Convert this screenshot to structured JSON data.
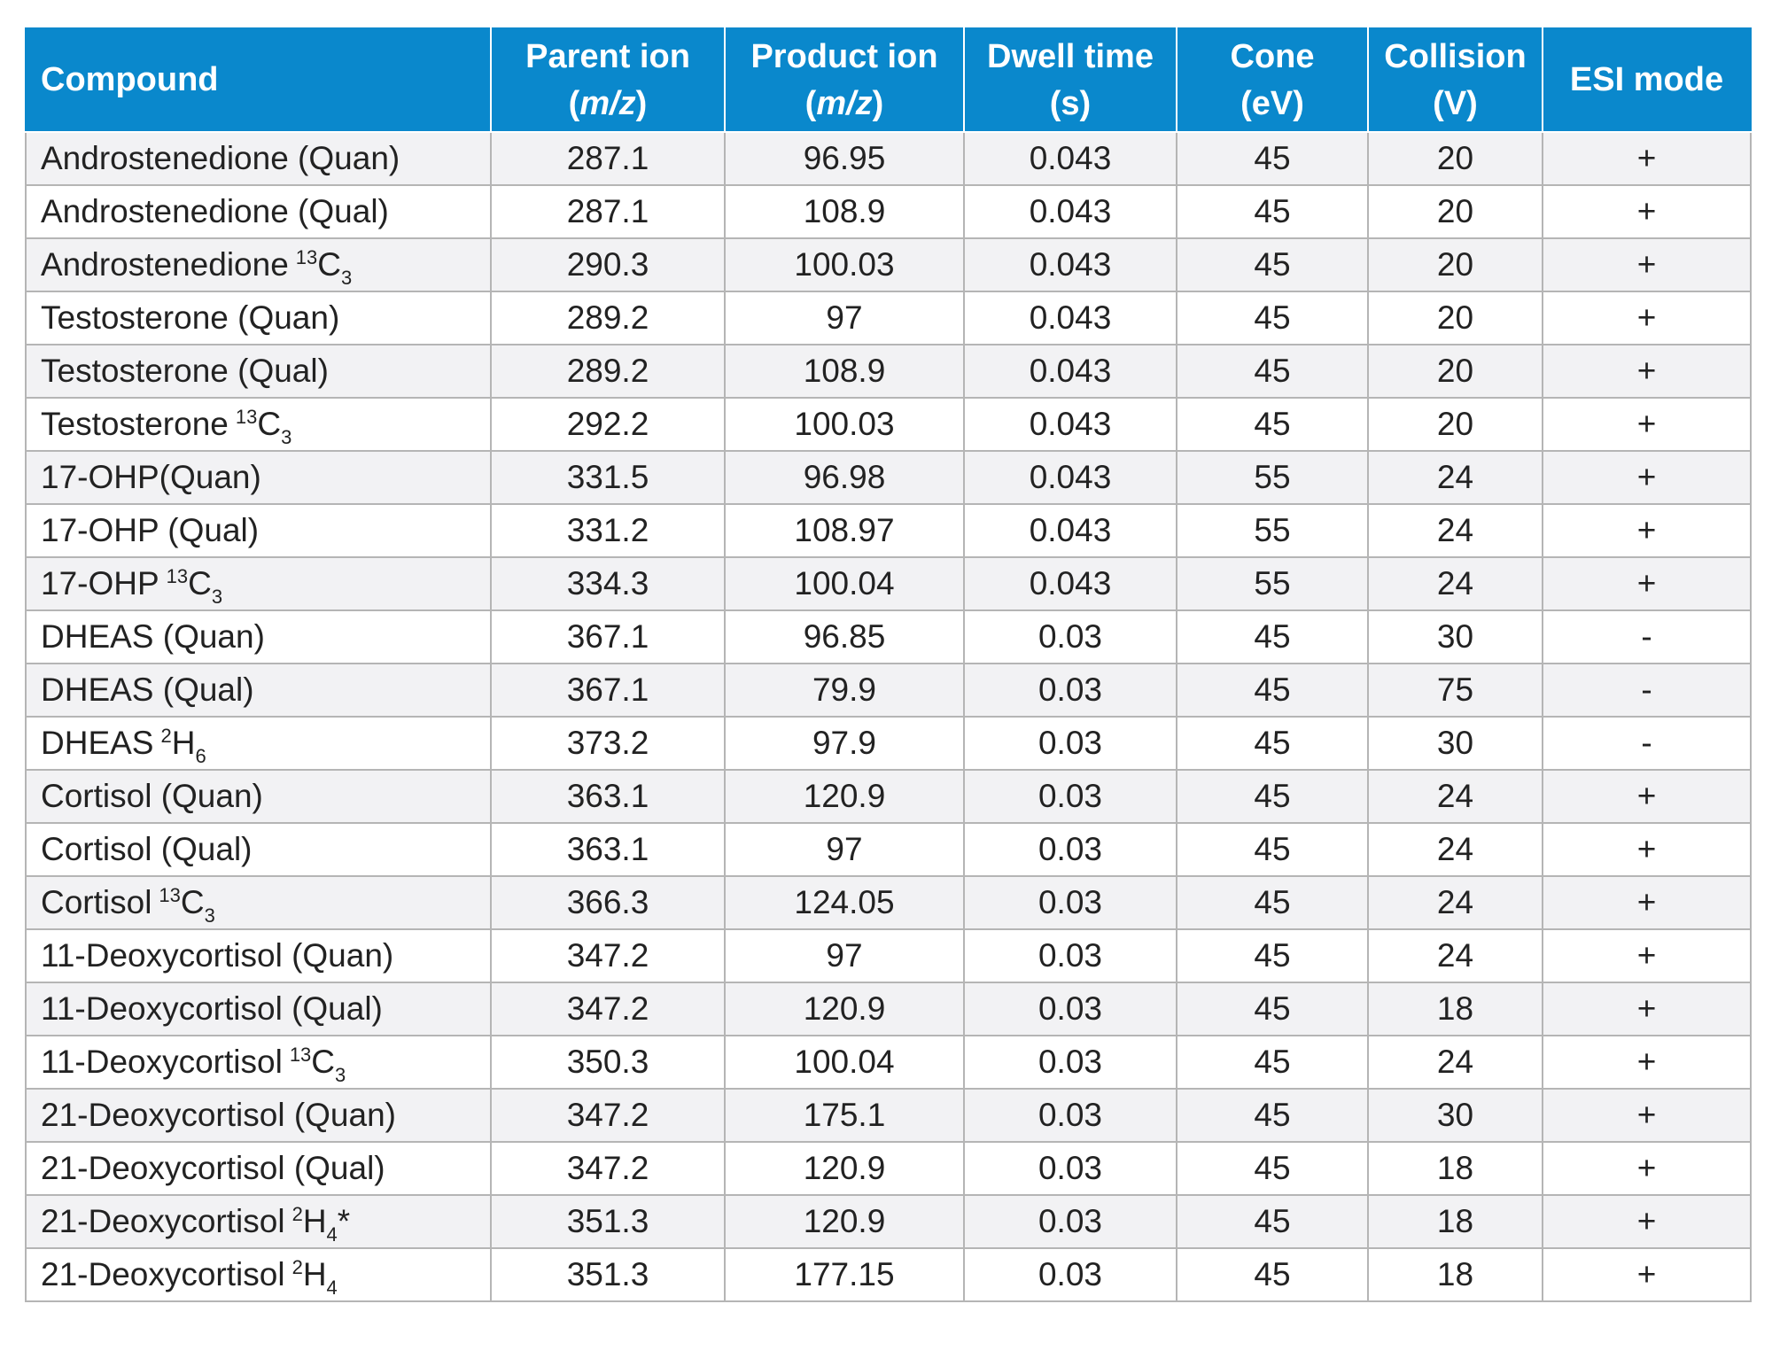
{
  "table": {
    "headers": [
      {
        "line1": "Compound",
        "line2": ""
      },
      {
        "line1": "Parent ion",
        "line2": "m/z",
        "unit_style": "italic-paren"
      },
      {
        "line1": "Product ion",
        "line2": "m/z",
        "unit_style": "italic-paren"
      },
      {
        "line1": "Dwell time",
        "line2": "(s)"
      },
      {
        "line1": "Cone",
        "line2": "(eV)"
      },
      {
        "line1": "Collision",
        "line2": "(V)"
      },
      {
        "line1": "ESI mode",
        "line2": ""
      }
    ],
    "header_color": "#0a88cc",
    "rows": [
      {
        "name": "Androstenedione (Quan)",
        "parent": "287.1",
        "product": "96.95",
        "dwell": "0.043",
        "cone": "45",
        "collision": "20",
        "esi": "+"
      },
      {
        "name": "Androstenedione (Qual)",
        "parent": "287.1",
        "product": "108.9",
        "dwell": "0.043",
        "cone": "45",
        "collision": "20",
        "esi": "+"
      },
      {
        "name": "Androstenedione",
        "iso_sup": "13",
        "iso_el": "C",
        "iso_sub": "3",
        "iso_suffix": "",
        "parent": "290.3",
        "product": "100.03",
        "dwell": "0.043",
        "cone": "45",
        "collision": "20",
        "esi": "+"
      },
      {
        "name": "Testosterone (Quan)",
        "parent": "289.2",
        "product": "97",
        "dwell": "0.043",
        "cone": "45",
        "collision": "20",
        "esi": "+"
      },
      {
        "name": "Testosterone (Qual)",
        "parent": "289.2",
        "product": "108.9",
        "dwell": "0.043",
        "cone": "45",
        "collision": "20",
        "esi": "+"
      },
      {
        "name": "Testosterone",
        "iso_sup": "13",
        "iso_el": "C",
        "iso_sub": "3",
        "iso_suffix": "",
        "parent": "292.2",
        "product": "100.03",
        "dwell": "0.043",
        "cone": "45",
        "collision": "20",
        "esi": "+"
      },
      {
        "name": "17-OHP(Quan)",
        "parent": "331.5",
        "product": "96.98",
        "dwell": "0.043",
        "cone": "55",
        "collision": "24",
        "esi": "+"
      },
      {
        "name": "17-OHP (Qual)",
        "parent": "331.2",
        "product": "108.97",
        "dwell": "0.043",
        "cone": "55",
        "collision": "24",
        "esi": "+"
      },
      {
        "name": "17-OHP",
        "iso_sup": "13",
        "iso_el": "C",
        "iso_sub": "3",
        "iso_suffix": "",
        "parent": "334.3",
        "product": "100.04",
        "dwell": "0.043",
        "cone": "55",
        "collision": "24",
        "esi": "+"
      },
      {
        "name": "DHEAS (Quan)",
        "parent": "367.1",
        "product": "96.85",
        "dwell": "0.03",
        "cone": "45",
        "collision": "30",
        "esi": "-"
      },
      {
        "name": "DHEAS (Qual)",
        "parent": "367.1",
        "product": "79.9",
        "dwell": "0.03",
        "cone": "45",
        "collision": "75",
        "esi": "-"
      },
      {
        "name": "DHEAS",
        "iso_sup": "2",
        "iso_el": "H",
        "iso_sub": "6",
        "iso_suffix": "",
        "parent": "373.2",
        "product": "97.9",
        "dwell": "0.03",
        "cone": "45",
        "collision": "30",
        "esi": "-"
      },
      {
        "name": "Cortisol (Quan)",
        "parent": "363.1",
        "product": "120.9",
        "dwell": "0.03",
        "cone": "45",
        "collision": "24",
        "esi": "+"
      },
      {
        "name": "Cortisol (Qual)",
        "parent": "363.1",
        "product": "97",
        "dwell": "0.03",
        "cone": "45",
        "collision": "24",
        "esi": "+"
      },
      {
        "name": "Cortisol",
        "iso_sup": "13",
        "iso_el": "C",
        "iso_sub": "3",
        "iso_suffix": "",
        "parent": "366.3",
        "product": "124.05",
        "dwell": "0.03",
        "cone": "45",
        "collision": "24",
        "esi": "+"
      },
      {
        "name": "11-Deoxycortisol (Quan)",
        "parent": "347.2",
        "product": "97",
        "dwell": "0.03",
        "cone": "45",
        "collision": "24",
        "esi": "+"
      },
      {
        "name": "11-Deoxycortisol (Qual)",
        "parent": "347.2",
        "product": "120.9",
        "dwell": "0.03",
        "cone": "45",
        "collision": "18",
        "esi": "+"
      },
      {
        "name": "11-Deoxycortisol",
        "iso_sup": "13",
        "iso_el": "C",
        "iso_sub": "3",
        "iso_suffix": "",
        "parent": "350.3",
        "product": "100.04",
        "dwell": "0.03",
        "cone": "45",
        "collision": "24",
        "esi": "+"
      },
      {
        "name": "21-Deoxycortisol (Quan)",
        "parent": "347.2",
        "product": "175.1",
        "dwell": "0.03",
        "cone": "45",
        "collision": "30",
        "esi": "+"
      },
      {
        "name": "21-Deoxycortisol (Qual)",
        "parent": "347.2",
        "product": "120.9",
        "dwell": "0.03",
        "cone": "45",
        "collision": "18",
        "esi": "+"
      },
      {
        "name": "21-Deoxycortisol",
        "iso_sup": "2",
        "iso_el": "H",
        "iso_sub": "4",
        "iso_suffix": "*",
        "parent": "351.3",
        "product": "120.9",
        "dwell": "0.03",
        "cone": "45",
        "collision": "18",
        "esi": "+"
      },
      {
        "name": "21-Deoxycortisol",
        "iso_sup": "2",
        "iso_el": "H",
        "iso_sub": "4",
        "iso_suffix": "",
        "parent": "351.3",
        "product": "177.15",
        "dwell": "0.03",
        "cone": "45",
        "collision": "18",
        "esi": "+"
      }
    ]
  }
}
